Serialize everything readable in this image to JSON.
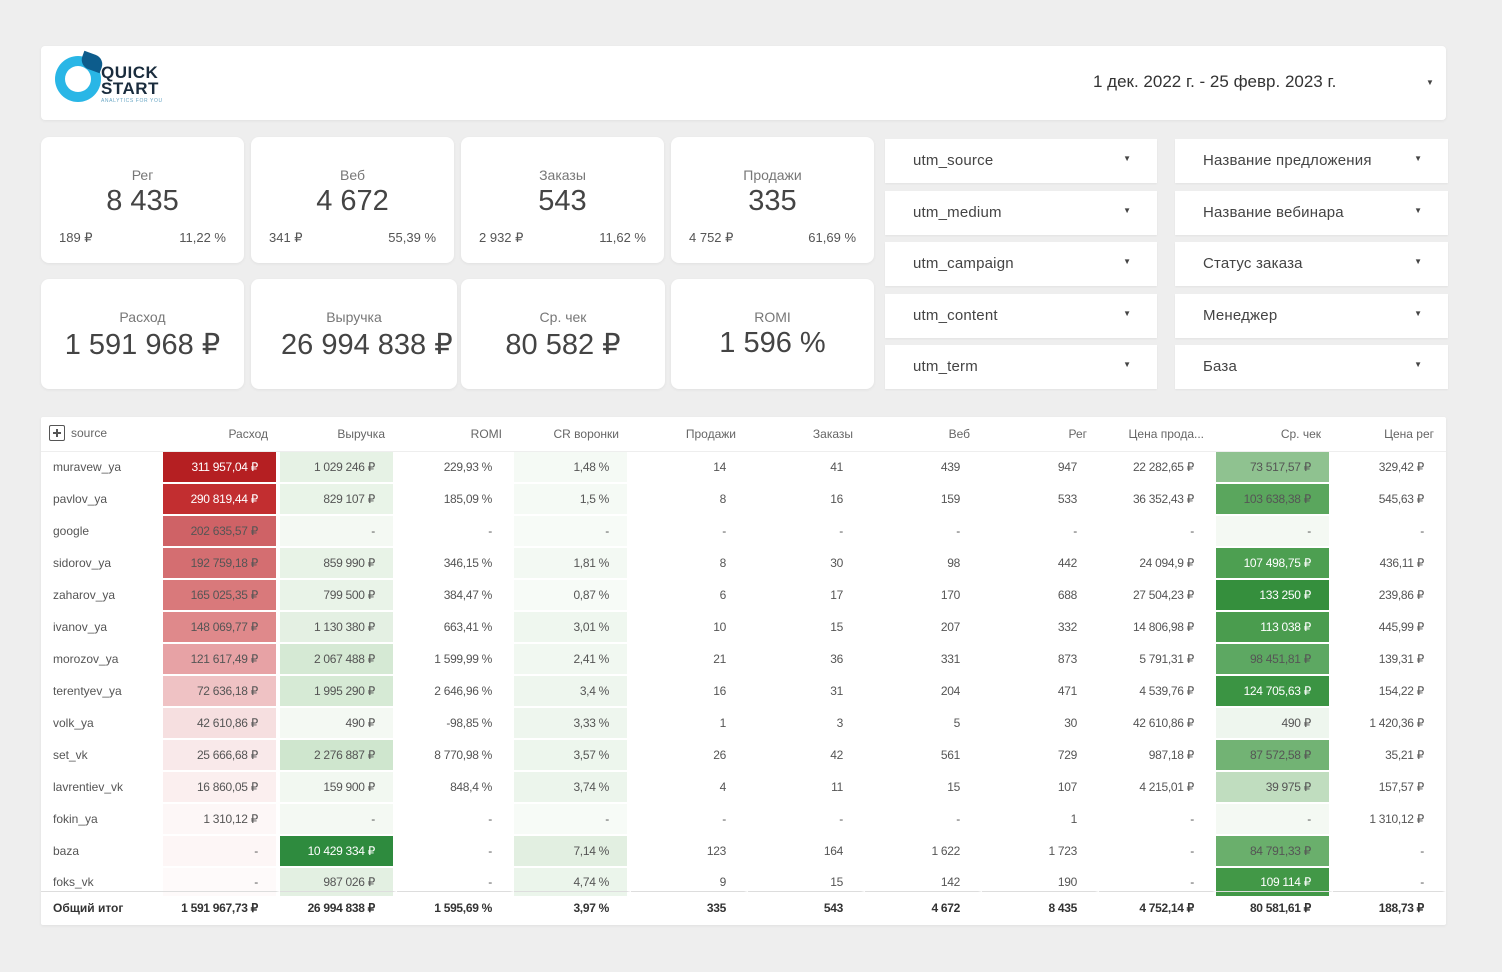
{
  "header": {
    "logo": {
      "line1": "QUICK",
      "line2": "START",
      "tagline": "ANALYTICS FOR YOU"
    },
    "date_range": "1 дек. 2022 г. - 25 февр. 2023 г."
  },
  "kpis": [
    {
      "label": "Рег",
      "value": "8 435",
      "sub_left": "189 ₽",
      "sub_right": "11,22 %"
    },
    {
      "label": "Веб",
      "value": "4 672",
      "sub_left": "341 ₽",
      "sub_right": "55,39 %"
    },
    {
      "label": "Заказы",
      "value": "543",
      "sub_left": "2 932 ₽",
      "sub_right": "11,62 %"
    },
    {
      "label": "Продажи",
      "value": "335",
      "sub_left": "4 752 ₽",
      "sub_right": "61,69 %"
    }
  ],
  "kpis_big": [
    {
      "label": "Расход",
      "value": "1 591 968 ₽"
    },
    {
      "label": "Выручка",
      "value": "26 994 838 ₽"
    },
    {
      "label": "Ср. чек",
      "value": "80 582 ₽"
    },
    {
      "label": "ROMI",
      "value": "1 596 %"
    }
  ],
  "filters_left": [
    "utm_source",
    "utm_medium",
    "utm_campaign",
    "utm_content",
    "utm_term"
  ],
  "filters_right": [
    "Название предложения",
    "Название вебинара",
    "Статус заказа",
    "Менеджер",
    "База"
  ],
  "table": {
    "expand_icon": "plus-square-icon",
    "columns": [
      "source",
      "Расход",
      "Выручка",
      "ROMI",
      "CR воронки",
      "Продажи",
      "Заказы",
      "Веб",
      "Рег",
      "Цена прода...",
      "Ср. чек",
      "Цена рег"
    ],
    "rows": [
      [
        "muravew_ya",
        "311 957,04 ₽",
        "1 029 246 ₽",
        "229,93 %",
        "1,48 %",
        "14",
        "41",
        "439",
        "947",
        "22 282,65 ₽",
        "73 517,57 ₽",
        "329,42 ₽"
      ],
      [
        "pavlov_ya",
        "290 819,44 ₽",
        "829 107 ₽",
        "185,09 %",
        "1,5 %",
        "8",
        "16",
        "159",
        "533",
        "36 352,43 ₽",
        "103 638,38 ₽",
        "545,63 ₽"
      ],
      [
        "google",
        "202 635,57 ₽",
        "-",
        "-",
        "-",
        "-",
        "-",
        "-",
        "-",
        "-",
        "-",
        "-"
      ],
      [
        "sidorov_ya",
        "192 759,18 ₽",
        "859 990 ₽",
        "346,15 %",
        "1,81 %",
        "8",
        "30",
        "98",
        "442",
        "24 094,9 ₽",
        "107 498,75 ₽",
        "436,11 ₽"
      ],
      [
        "zaharov_ya",
        "165 025,35 ₽",
        "799 500 ₽",
        "384,47 %",
        "0,87 %",
        "6",
        "17",
        "170",
        "688",
        "27 504,23 ₽",
        "133 250 ₽",
        "239,86 ₽"
      ],
      [
        "ivanov_ya",
        "148 069,77 ₽",
        "1 130 380 ₽",
        "663,41 %",
        "3,01 %",
        "10",
        "15",
        "207",
        "332",
        "14 806,98 ₽",
        "113 038 ₽",
        "445,99 ₽"
      ],
      [
        "morozov_ya",
        "121 617,49 ₽",
        "2 067 488 ₽",
        "1 599,99 %",
        "2,41 %",
        "21",
        "36",
        "331",
        "873",
        "5 791,31 ₽",
        "98 451,81 ₽",
        "139,31 ₽"
      ],
      [
        "terentyev_ya",
        "72 636,18 ₽",
        "1 995 290 ₽",
        "2 646,96 %",
        "3,4 %",
        "16",
        "31",
        "204",
        "471",
        "4 539,76 ₽",
        "124 705,63 ₽",
        "154,22 ₽"
      ],
      [
        "volk_ya",
        "42 610,86 ₽",
        "490 ₽",
        "-98,85 %",
        "3,33 %",
        "1",
        "3",
        "5",
        "30",
        "42 610,86 ₽",
        "490 ₽",
        "1 420,36 ₽"
      ],
      [
        "set_vk",
        "25 666,68 ₽",
        "2 276 887 ₽",
        "8 770,98 %",
        "3,57 %",
        "26",
        "42",
        "561",
        "729",
        "987,18 ₽",
        "87 572,58 ₽",
        "35,21 ₽"
      ],
      [
        "lavrentiev_vk",
        "16 860,05 ₽",
        "159 900 ₽",
        "848,4 %",
        "3,74 %",
        "4",
        "11",
        "15",
        "107",
        "4 215,01 ₽",
        "39 975 ₽",
        "157,57 ₽"
      ],
      [
        "fokin_ya",
        "1 310,12 ₽",
        "-",
        "-",
        "-",
        "-",
        "-",
        "-",
        "1",
        "-",
        "-",
        "1 310,12 ₽"
      ],
      [
        "baza",
        "-",
        "10 429 334 ₽",
        "-",
        "7,14 %",
        "123",
        "164",
        "1 622",
        "1 723",
        "-",
        "84 791,33 ₽",
        "-"
      ],
      [
        "foks_vk",
        "-",
        "987 026 ₽",
        "-",
        "4,74 %",
        "9",
        "15",
        "142",
        "190",
        "-",
        "109 114 ₽",
        "-"
      ]
    ],
    "total": [
      "Общий итог",
      "1 591 967,73 ₽",
      "26 994 838 ₽",
      "1 595,69 %",
      "3,97 %",
      "335",
      "543",
      "4 672",
      "8 435",
      "4 752,14 ₽",
      "80 581,61 ₽",
      "188,73 ₽"
    ],
    "heat_colors": {
      "expense": [
        "#b51f22",
        "#c22e30",
        "#cf6266",
        "#d46e71",
        "#d9797b",
        "#df898b",
        "#e7a2a5",
        "#efc2c4",
        "#f6dfe0",
        "#f9e9ea",
        "#fbefef",
        "#fdf7f7",
        "#fdf6f6",
        "#fefafa"
      ],
      "revenue": [
        "#e6f2e5",
        "#e9f4e8",
        "#f4f9f3",
        "#e8f3e7",
        "#e9f3e8",
        "#e4f0e3",
        "#d5e9d4",
        "#d6ead5",
        "#f4f9f3",
        "#cfe6ce",
        "#f2f8f1",
        "#f4f9f3",
        "#2e8b3e",
        "#e3f0e2"
      ],
      "cr": [
        "#f5faf5",
        "#f5faf5",
        "#f7fbf7",
        "#f3f9f3",
        "#f7fbf7",
        "#eff7ef",
        "#f1f8f1",
        "#eef6ee",
        "#eef6ee",
        "#edf6ed",
        "#ecf5ec",
        "#f7fbf7",
        "#e2efe1",
        "#ebf5eb"
      ],
      "check": [
        "#8fc290",
        "#5aa65d",
        "#f4f9f3",
        "#4d9f51",
        "#358f3d",
        "#4a9c4e",
        "#5da862",
        "#3b9443",
        "#eef6ee",
        "#72b374",
        "#c0ddbf",
        "#f4f9f3",
        "#6aaf6c",
        "#429847"
      ]
    }
  }
}
